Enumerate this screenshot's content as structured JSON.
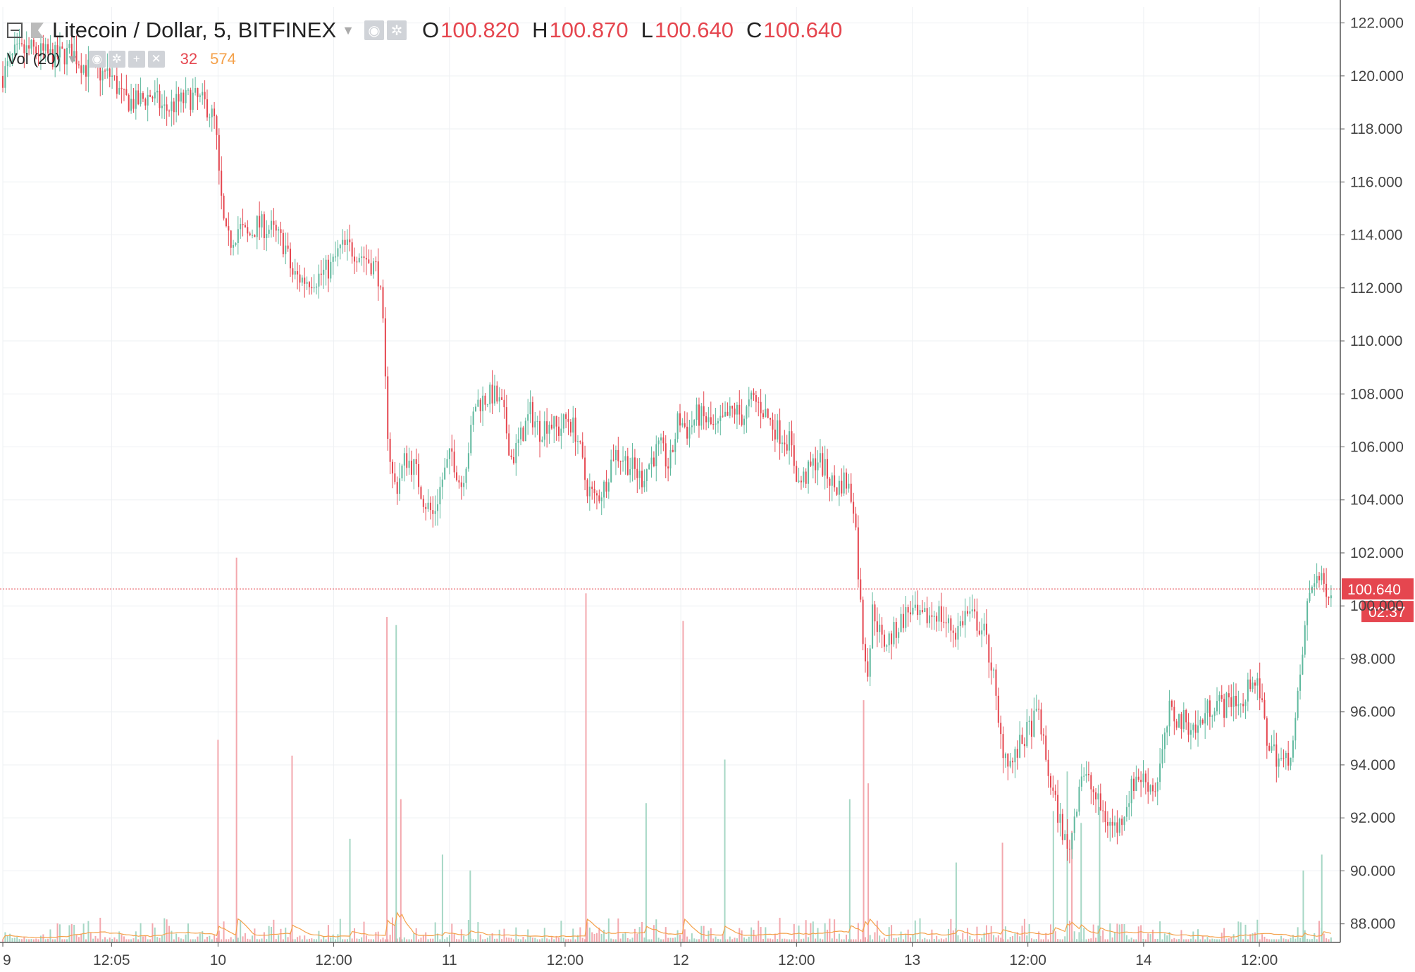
{
  "header": {
    "symbol": "Litecoin / Dollar, 5, BITFINEX",
    "ohlc": [
      {
        "key": "O",
        "value": "100.820"
      },
      {
        "key": "H",
        "value": "100.870"
      },
      {
        "key": "L",
        "value": "100.640"
      },
      {
        "key": "C",
        "value": "100.640"
      }
    ]
  },
  "volume_legend": {
    "label": "Vol (20)",
    "value": "32",
    "ma_value": "574"
  },
  "colors": {
    "up": "#5fb99e",
    "down": "#e5464f",
    "volume_up": "#a6d7c5",
    "volume_down": "#f3a8ae",
    "volume_ma": "#f4a14a",
    "grid": "#eef0f3",
    "axis": "#555555",
    "price_line": "#e5464f"
  },
  "current_price": {
    "value": 100.64,
    "label": "100.640",
    "countdown": "02:37"
  },
  "chart_data": {
    "type": "candlestick",
    "title": "Litecoin / Dollar, 5, BITFINEX",
    "ylim": [
      87.3,
      122.6
    ],
    "y_ticks": [
      "122.000",
      "120.000",
      "118.000",
      "116.000",
      "114.000",
      "112.000",
      "110.000",
      "108.000",
      "106.000",
      "104.000",
      "102.000",
      "100.000",
      "98.000",
      "96.000",
      "94.000",
      "92.000",
      "90.000",
      "88.000"
    ],
    "x_ticks": [
      {
        "label": "9",
        "x": 0.0
      },
      {
        "label": "12:05",
        "x": 0.47
      },
      {
        "label": "10",
        "x": 0.93
      },
      {
        "label": "12:00",
        "x": 1.43
      },
      {
        "label": "11",
        "x": 1.93
      },
      {
        "label": "12:00",
        "x": 2.43
      },
      {
        "label": "12",
        "x": 2.93
      },
      {
        "label": "12:00",
        "x": 3.43
      },
      {
        "label": "13",
        "x": 3.93
      },
      {
        "label": "12:00",
        "x": 4.43
      },
      {
        "label": "14",
        "x": 4.93
      },
      {
        "label": "12:00",
        "x": 5.43
      }
    ],
    "xlim": [
      0,
      5.78
    ],
    "price_series": [
      [
        0.0,
        120.0
      ],
      [
        0.05,
        120.8
      ],
      [
        0.12,
        121.0
      ],
      [
        0.22,
        120.7
      ],
      [
        0.3,
        120.9
      ],
      [
        0.36,
        120.3
      ],
      [
        0.42,
        120.1
      ],
      [
        0.47,
        120.0
      ],
      [
        0.52,
        119.1
      ],
      [
        0.58,
        119.0
      ],
      [
        0.64,
        119.3
      ],
      [
        0.7,
        118.7
      ],
      [
        0.76,
        119.0
      ],
      [
        0.82,
        119.2
      ],
      [
        0.88,
        118.9
      ],
      [
        0.92,
        118.2
      ],
      [
        0.93,
        116.5
      ],
      [
        0.96,
        114.0
      ],
      [
        0.98,
        113.7
      ],
      [
        1.02,
        114.3
      ],
      [
        1.06,
        113.9
      ],
      [
        1.1,
        114.4
      ],
      [
        1.16,
        114.2
      ],
      [
        1.22,
        113.6
      ],
      [
        1.25,
        112.5
      ],
      [
        1.3,
        112.3
      ],
      [
        1.36,
        112.4
      ],
      [
        1.42,
        112.8
      ],
      [
        1.46,
        113.5
      ],
      [
        1.5,
        113.5
      ],
      [
        1.56,
        113.2
      ],
      [
        1.62,
        112.7
      ],
      [
        1.64,
        111.0
      ],
      [
        1.66,
        107.0
      ],
      [
        1.68,
        105.0
      ],
      [
        1.7,
        104.4
      ],
      [
        1.74,
        105.6
      ],
      [
        1.78,
        105.2
      ],
      [
        1.82,
        104.0
      ],
      [
        1.86,
        103.4
      ],
      [
        1.9,
        104.8
      ],
      [
        1.94,
        105.8
      ],
      [
        1.98,
        104.5
      ],
      [
        2.02,
        106.3
      ],
      [
        2.04,
        107.6
      ],
      [
        2.08,
        107.8
      ],
      [
        2.12,
        108.0
      ],
      [
        2.16,
        107.4
      ],
      [
        2.2,
        105.5
      ],
      [
        2.24,
        106.4
      ],
      [
        2.28,
        107.3
      ],
      [
        2.32,
        106.6
      ],
      [
        2.36,
        107.0
      ],
      [
        2.4,
        106.6
      ],
      [
        2.44,
        107.1
      ],
      [
        2.48,
        106.5
      ],
      [
        2.52,
        104.6
      ],
      [
        2.56,
        104.0
      ],
      [
        2.6,
        104.5
      ],
      [
        2.64,
        105.8
      ],
      [
        2.68,
        105.6
      ],
      [
        2.72,
        105.2
      ],
      [
        2.76,
        104.8
      ],
      [
        2.8,
        105.5
      ],
      [
        2.84,
        106.0
      ],
      [
        2.88,
        105.2
      ],
      [
        2.92,
        107.1
      ],
      [
        2.96,
        106.6
      ],
      [
        3.0,
        107.2
      ],
      [
        3.04,
        107.0
      ],
      [
        3.08,
        106.6
      ],
      [
        3.12,
        107.0
      ],
      [
        3.16,
        107.4
      ],
      [
        3.2,
        107.1
      ],
      [
        3.24,
        107.8
      ],
      [
        3.28,
        107.5
      ],
      [
        3.32,
        106.9
      ],
      [
        3.36,
        106.5
      ],
      [
        3.4,
        106.2
      ],
      [
        3.44,
        104.6
      ],
      [
        3.48,
        105.0
      ],
      [
        3.52,
        105.6
      ],
      [
        3.56,
        105.0
      ],
      [
        3.6,
        104.4
      ],
      [
        3.64,
        104.8
      ],
      [
        3.68,
        103.8
      ],
      [
        3.7,
        100.8
      ],
      [
        3.72,
        98.5
      ],
      [
        3.74,
        97.6
      ],
      [
        3.76,
        100.0
      ],
      [
        3.8,
        98.6
      ],
      [
        3.84,
        98.8
      ],
      [
        3.88,
        99.4
      ],
      [
        3.92,
        99.9
      ],
      [
        3.96,
        99.4
      ],
      [
        4.0,
        99.6
      ],
      [
        4.04,
        99.8
      ],
      [
        4.08,
        99.3
      ],
      [
        4.12,
        99.0
      ],
      [
        4.16,
        99.7
      ],
      [
        4.2,
        99.5
      ],
      [
        4.24,
        99.0
      ],
      [
        4.28,
        97.5
      ],
      [
        4.3,
        95.5
      ],
      [
        4.32,
        94.7
      ],
      [
        4.36,
        94.0
      ],
      [
        4.4,
        94.8
      ],
      [
        4.44,
        95.4
      ],
      [
        4.48,
        96.0
      ],
      [
        4.5,
        94.5
      ],
      [
        4.54,
        92.8
      ],
      [
        4.58,
        91.5
      ],
      [
        4.6,
        90.7
      ],
      [
        4.62,
        91.4
      ],
      [
        4.66,
        93.8
      ],
      [
        4.7,
        93.2
      ],
      [
        4.74,
        92.4
      ],
      [
        4.78,
        91.8
      ],
      [
        4.82,
        91.6
      ],
      [
        4.86,
        92.7
      ],
      [
        4.9,
        93.6
      ],
      [
        4.94,
        93.4
      ],
      [
        4.98,
        93.1
      ],
      [
        5.02,
        94.8
      ],
      [
        5.04,
        96.0
      ],
      [
        5.08,
        95.7
      ],
      [
        5.12,
        95.6
      ],
      [
        5.16,
        95.3
      ],
      [
        5.2,
        96.0
      ],
      [
        5.24,
        96.4
      ],
      [
        5.28,
        96.2
      ],
      [
        5.32,
        96.6
      ],
      [
        5.36,
        96.1
      ],
      [
        5.4,
        97.5
      ],
      [
        5.44,
        96.3
      ],
      [
        5.46,
        95.0
      ],
      [
        5.5,
        94.4
      ],
      [
        5.54,
        94.0
      ],
      [
        5.58,
        95.0
      ],
      [
        5.62,
        98.5
      ],
      [
        5.64,
        100.2
      ],
      [
        5.67,
        101.2
      ],
      [
        5.7,
        100.8
      ],
      [
        5.74,
        100.64
      ]
    ],
    "volume_scale": {
      "ylim": [
        0,
        1.0
      ]
    },
    "volume_spikes": [
      {
        "x": 0.93,
        "v": 0.51,
        "dir": "down"
      },
      {
        "x": 1.01,
        "v": 0.97,
        "dir": "down"
      },
      {
        "x": 1.25,
        "v": 0.47,
        "dir": "down"
      },
      {
        "x": 1.5,
        "v": 0.26,
        "dir": "up"
      },
      {
        "x": 1.66,
        "v": 0.82,
        "dir": "down"
      },
      {
        "x": 1.7,
        "v": 0.8,
        "dir": "up"
      },
      {
        "x": 1.72,
        "v": 0.36,
        "dir": "down"
      },
      {
        "x": 1.9,
        "v": 0.22,
        "dir": "up"
      },
      {
        "x": 2.02,
        "v": 0.18,
        "dir": "up"
      },
      {
        "x": 2.52,
        "v": 0.88,
        "dir": "down"
      },
      {
        "x": 2.94,
        "v": 0.81,
        "dir": "down"
      },
      {
        "x": 2.78,
        "v": 0.35,
        "dir": "up"
      },
      {
        "x": 3.12,
        "v": 0.46,
        "dir": "up"
      },
      {
        "x": 3.66,
        "v": 0.36,
        "dir": "up"
      },
      {
        "x": 3.72,
        "v": 0.61,
        "dir": "down"
      },
      {
        "x": 3.74,
        "v": 0.4,
        "dir": "down"
      },
      {
        "x": 4.12,
        "v": 0.2,
        "dir": "up"
      },
      {
        "x": 4.32,
        "v": 0.25,
        "dir": "down"
      },
      {
        "x": 4.54,
        "v": 0.33,
        "dir": "up"
      },
      {
        "x": 4.6,
        "v": 0.43,
        "dir": "up"
      },
      {
        "x": 4.62,
        "v": 0.28,
        "dir": "down"
      },
      {
        "x": 4.66,
        "v": 0.3,
        "dir": "up"
      },
      {
        "x": 4.74,
        "v": 0.34,
        "dir": "up"
      },
      {
        "x": 5.62,
        "v": 0.18,
        "dir": "up"
      },
      {
        "x": 5.7,
        "v": 0.22,
        "dir": "up"
      }
    ]
  }
}
